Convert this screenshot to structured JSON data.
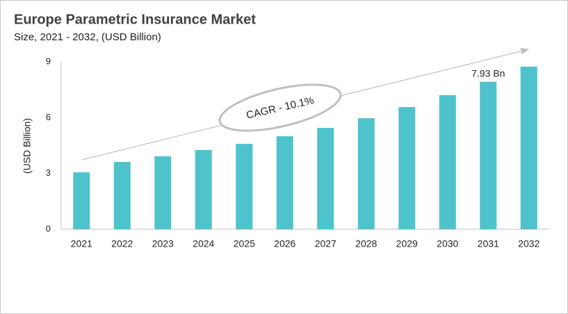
{
  "chart_data": {
    "type": "bar",
    "title": "Europe Parametric Insurance Market",
    "subtitle": "Size, 2021 - 2032, (USD Billion)",
    "y_label": "(USD Billion)",
    "annotation": "CAGR - 10.1%",
    "categories": [
      "2021",
      "2022",
      "2023",
      "2024",
      "2025",
      "2026",
      "2027",
      "2028",
      "2029",
      "2030",
      "2031",
      "2032"
    ],
    "values": [
      3.06,
      3.62,
      3.92,
      4.26,
      4.59,
      5.0,
      5.45,
      5.97,
      6.57,
      7.21,
      7.93,
      8.74
    ],
    "value_labels": [
      null,
      null,
      null,
      null,
      null,
      null,
      null,
      null,
      null,
      null,
      "7.93 Bn",
      null
    ],
    "color": "#4fc3cc",
    "ylim": [
      0,
      9
    ],
    "yticks": [
      0,
      3,
      6,
      9
    ],
    "grid": false
  }
}
